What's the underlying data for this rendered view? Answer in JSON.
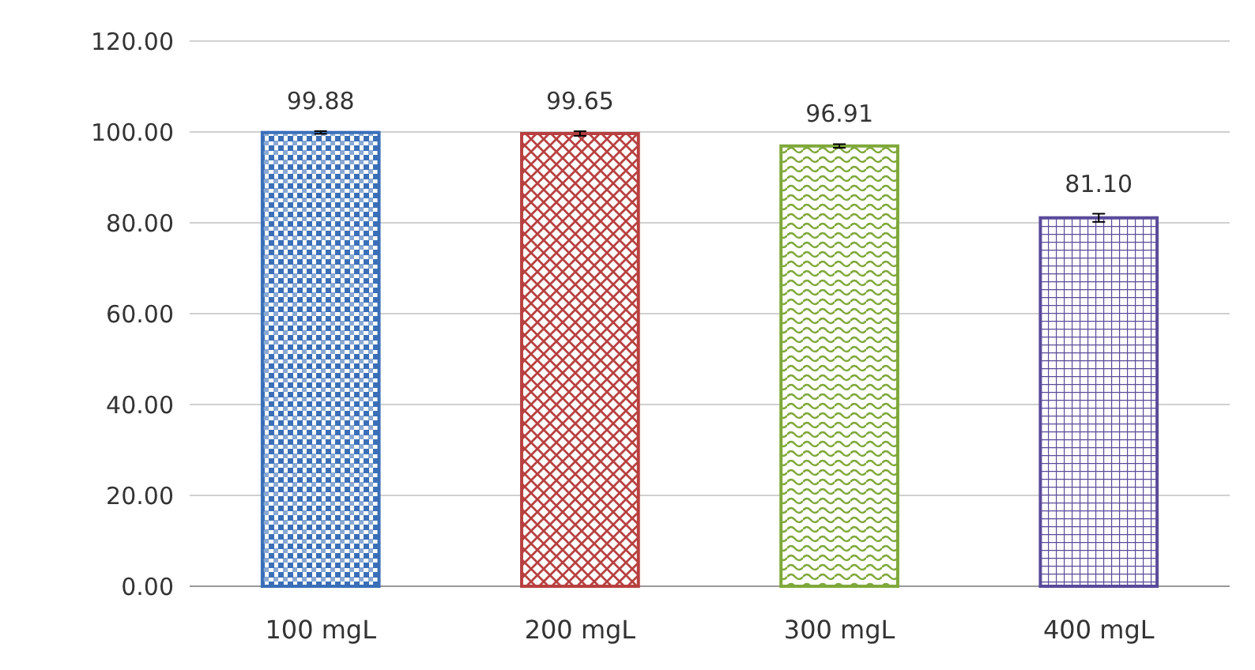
{
  "chart_data": {
    "type": "bar",
    "categories": [
      "100 mgL",
      "200 mgL",
      "300 mgL",
      "400 mgL"
    ],
    "values": [
      99.88,
      99.65,
      96.91,
      81.1
    ],
    "colors": [
      "#3a6fb8",
      "#b84040",
      "#7fa83a",
      "#5a4a9a"
    ],
    "errors": [
      0.3,
      0.5,
      0.4,
      0.9
    ],
    "value_labels": [
      "99.88",
      "99.65",
      "96.91",
      "81.10"
    ],
    "ylim": [
      0,
      120
    ],
    "yticks": [
      {
        "value": 0,
        "label": "0.00"
      },
      {
        "value": 20,
        "label": "20.00"
      },
      {
        "value": 40,
        "label": "40.00"
      },
      {
        "value": 60,
        "label": "60.00"
      },
      {
        "value": 80,
        "label": "80.00"
      },
      {
        "value": 100,
        "label": "100.00"
      },
      {
        "value": 120,
        "label": "120.00"
      }
    ],
    "grid": "y"
  }
}
